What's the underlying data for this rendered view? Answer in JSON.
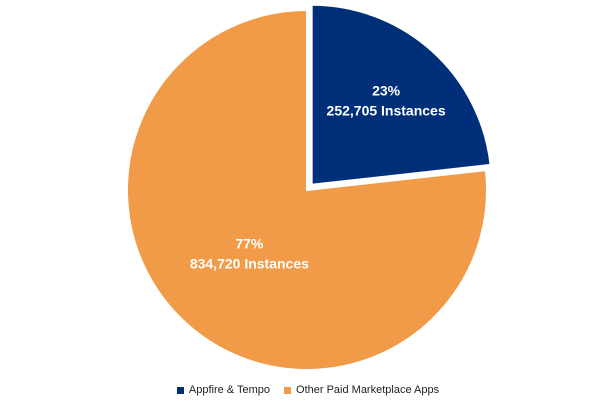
{
  "chart_data": {
    "type": "pie",
    "slices": [
      {
        "name": "Appfire & Tempo",
        "value": 252705,
        "percent_label": "23%",
        "value_label": "252,705 Instances",
        "color": "#002f7a",
        "exploded": true
      },
      {
        "name": "Other Paid Marketplace Apps",
        "value": 834720,
        "percent_label": "77%",
        "value_label": "834,720 Instances",
        "color": "#f19a47",
        "exploded": false
      }
    ],
    "legend_position": "bottom"
  }
}
